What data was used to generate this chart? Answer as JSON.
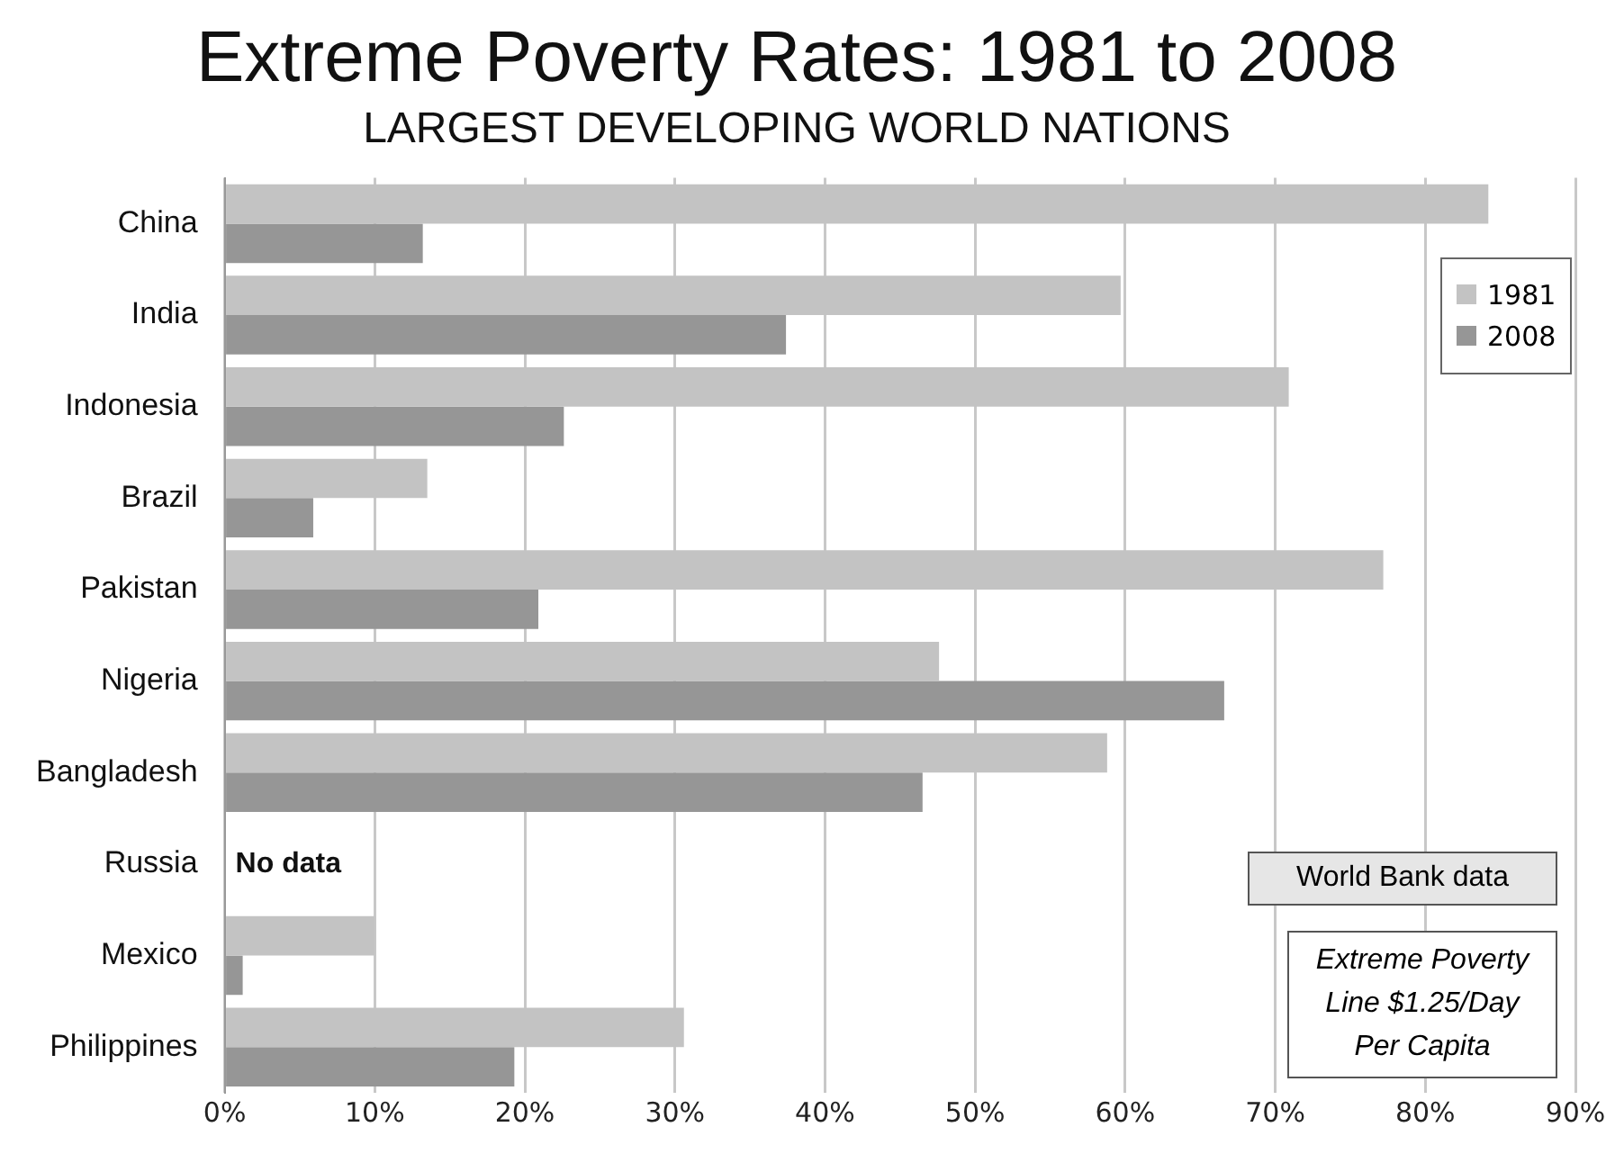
{
  "chart_data": {
    "type": "bar",
    "orientation": "horizontal",
    "title": "Extreme Poverty Rates: 1981 to 2008",
    "subtitle": "LARGEST DEVELOPING WORLD NATIONS",
    "categories": [
      "China",
      "India",
      "Indonesia",
      "Brazil",
      "Pakistan",
      "Nigeria",
      "Bangladesh",
      "Russia",
      "Mexico",
      "Philippines"
    ],
    "series": [
      {
        "name": "1981",
        "color": "#c3c3c3",
        "values": [
          84.2,
          59.7,
          70.9,
          13.5,
          77.2,
          47.6,
          58.8,
          null,
          10.0,
          30.6
        ]
      },
      {
        "name": "2008",
        "color": "#969696",
        "values": [
          13.2,
          37.4,
          22.6,
          5.9,
          20.9,
          66.6,
          46.5,
          null,
          1.2,
          19.3
        ]
      }
    ],
    "xlim": [
      0,
      90
    ],
    "xticks": [
      {
        "value": 0,
        "label": "0%"
      },
      {
        "value": 10,
        "label": "10%"
      },
      {
        "value": 20,
        "label": "20%"
      },
      {
        "value": 30,
        "label": "30%"
      },
      {
        "value": 40,
        "label": "40%"
      },
      {
        "value": 50,
        "label": "50%"
      },
      {
        "value": 60,
        "label": "60%"
      },
      {
        "value": 70,
        "label": "70%"
      },
      {
        "value": 80,
        "label": "80%"
      },
      {
        "value": 90,
        "label": "90%"
      }
    ],
    "grid": "x",
    "legend": "top right",
    "annotations": [
      "No data",
      "World Bank data",
      "Extreme Poverty Line $1.25/Day Per Capita"
    ]
  }
}
